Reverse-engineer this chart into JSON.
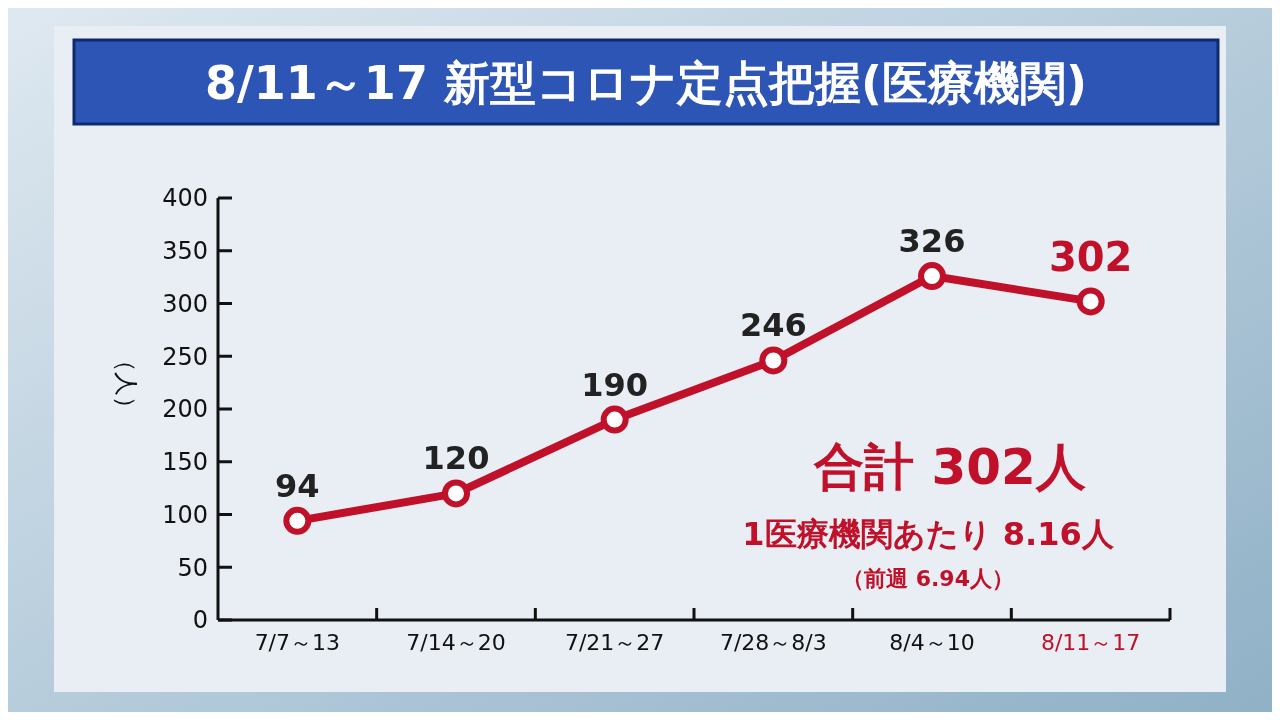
{
  "chart_data": {
    "type": "line",
    "title": "8/11～17 新型コロナ定点把握(医療機関)",
    "categories": [
      "7/7～13",
      "7/14～20",
      "7/21～27",
      "7/28～8/3",
      "8/4～10",
      "8/11～17"
    ],
    "series": [
      {
        "color": "#c0102a",
        "values": [
          94,
          120,
          190,
          246,
          326,
          302
        ]
      }
    ],
    "ylabel": "（人）",
    "ylim": [
      0,
      400
    ],
    "yticks": [
      0,
      50,
      100,
      150,
      200,
      250,
      300,
      350,
      400
    ],
    "data_labels": true,
    "marker": "circle",
    "line_style": "solid",
    "grid": false,
    "annotations": [
      "合計 302人",
      "1医療機関あたり 8.16人",
      "（前週 6.94人）"
    ]
  }
}
